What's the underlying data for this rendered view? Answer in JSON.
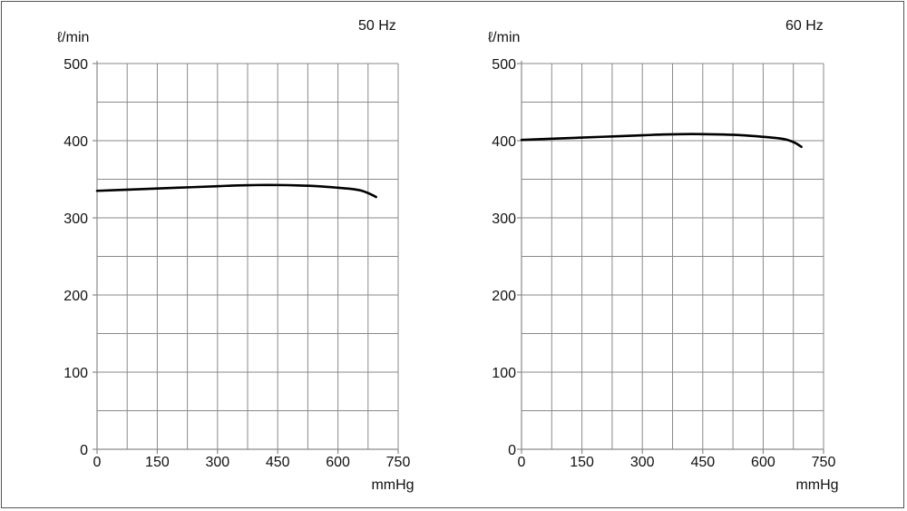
{
  "chart_data": [
    {
      "type": "line",
      "title": "50 Hz",
      "xlabel": "mmHg",
      "ylabel": "ℓ/min",
      "xlim": [
        0,
        750
      ],
      "ylim": [
        0,
        500
      ],
      "xticks": [
        "0",
        "150",
        "300",
        "450",
        "600",
        "750"
      ],
      "yticks": [
        "0",
        "100",
        "200",
        "300",
        "400",
        "500"
      ],
      "grid": true,
      "series": [
        {
          "x": [
            0,
            100,
            200,
            300,
            350,
            400,
            450,
            500,
            550,
            600,
            640,
            660,
            680,
            695
          ],
          "y": [
            335,
            337,
            339,
            341,
            342,
            342.5,
            342.5,
            342,
            341,
            339,
            337,
            335,
            331,
            327
          ]
        }
      ]
    },
    {
      "type": "line",
      "title": "60 Hz",
      "xlabel": "mmHg",
      "ylabel": "ℓ/min",
      "xlim": [
        0,
        750
      ],
      "ylim": [
        0,
        500
      ],
      "xticks": [
        "0",
        "150",
        "300",
        "450",
        "600",
        "750"
      ],
      "yticks": [
        "0",
        "100",
        "200",
        "300",
        "400",
        "500"
      ],
      "grid": true,
      "series": [
        {
          "x": [
            0,
            100,
            200,
            300,
            350,
            400,
            450,
            500,
            550,
            600,
            640,
            660,
            680,
            695
          ],
          "y": [
            401,
            403,
            405,
            407,
            408,
            408.5,
            408.5,
            408,
            407,
            405,
            403,
            401,
            397,
            392
          ]
        }
      ]
    }
  ]
}
